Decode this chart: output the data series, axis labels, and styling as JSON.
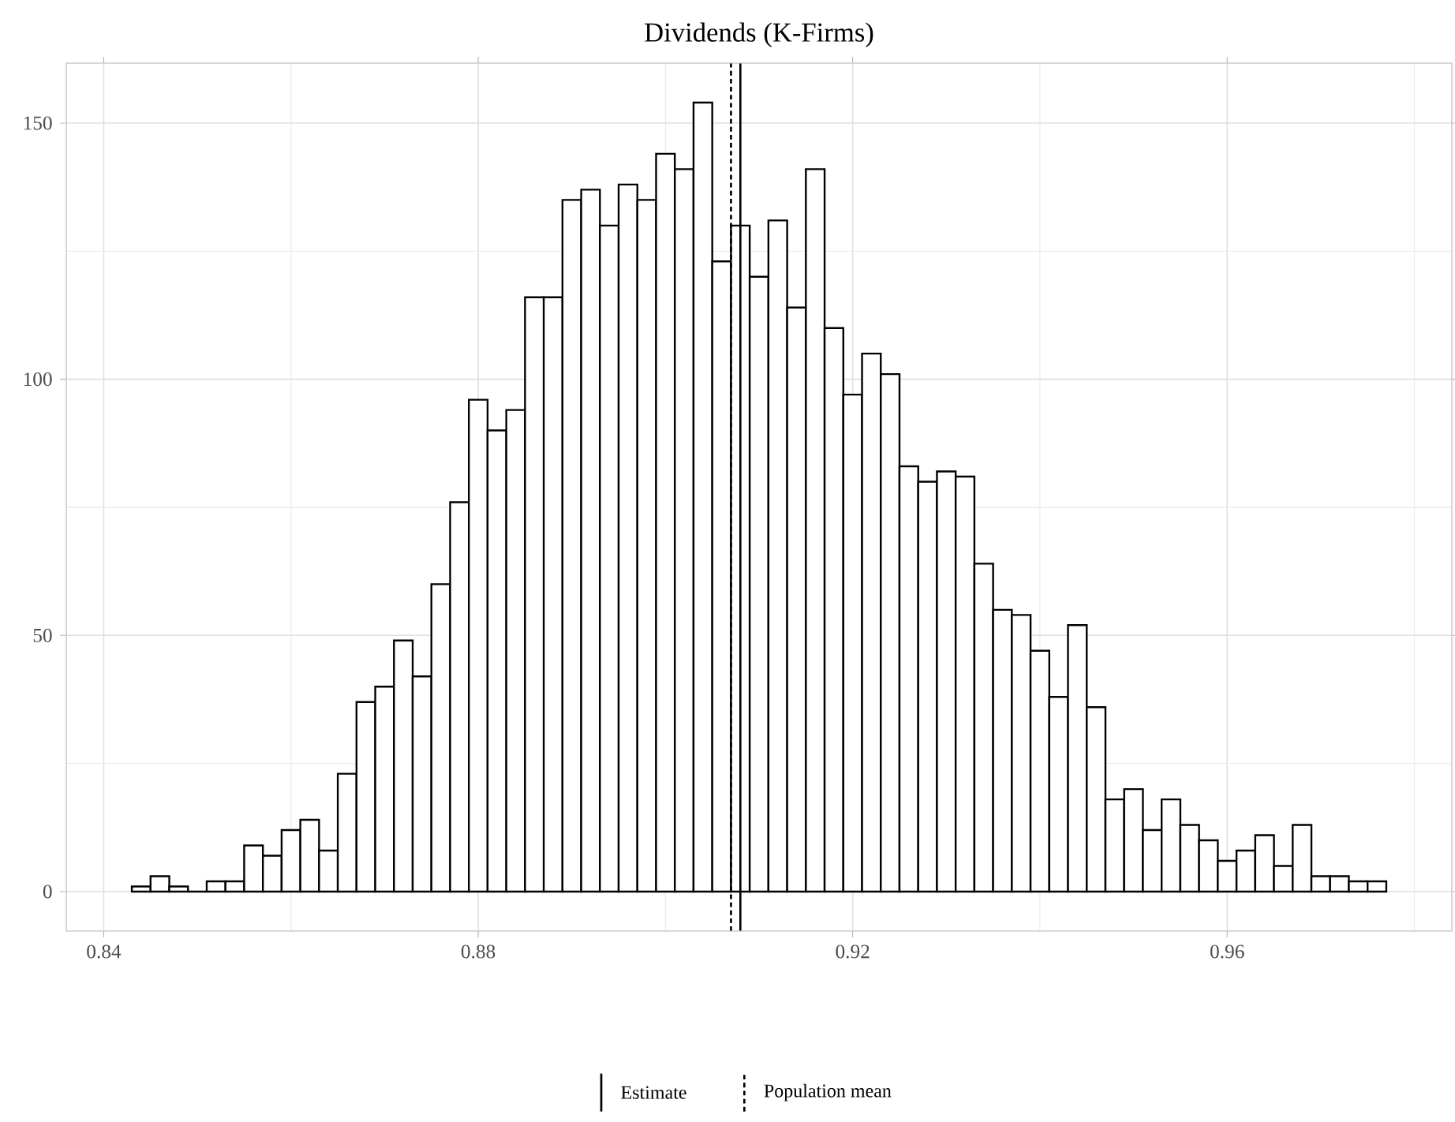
{
  "chart_data": {
    "type": "histogram",
    "title": "Dividends (K-Firms)",
    "bins": [
      0.843,
      0.845,
      0.847,
      0.849,
      0.851,
      0.853,
      0.855,
      0.857,
      0.859,
      0.861,
      0.863,
      0.865,
      0.867,
      0.869,
      0.871,
      0.873,
      0.875,
      0.877,
      0.879,
      0.881,
      0.883,
      0.885,
      0.887,
      0.889,
      0.891,
      0.893,
      0.895,
      0.897,
      0.899,
      0.901,
      0.903,
      0.905,
      0.907,
      0.909,
      0.911,
      0.913,
      0.915,
      0.917,
      0.919,
      0.921,
      0.923,
      0.925,
      0.927,
      0.929,
      0.931,
      0.933,
      0.935,
      0.937,
      0.939,
      0.941,
      0.943,
      0.945,
      0.947,
      0.949,
      0.951,
      0.953,
      0.955,
      0.957,
      0.959,
      0.961,
      0.963,
      0.965,
      0.967,
      0.969,
      0.971,
      0.973,
      0.975,
      0.977
    ],
    "values": [
      1,
      3,
      1,
      0,
      2,
      2,
      9,
      7,
      12,
      14,
      8,
      23,
      37,
      40,
      49,
      42,
      60,
      76,
      96,
      90,
      94,
      116,
      116,
      135,
      137,
      130,
      138,
      135,
      144,
      141,
      154,
      123,
      130,
      120,
      131,
      114,
      141,
      110,
      97,
      105,
      101,
      83,
      80,
      82,
      81,
      64,
      55,
      54,
      47,
      38,
      52,
      36,
      18,
      20,
      12,
      18,
      13,
      10,
      6,
      8,
      11,
      5,
      13,
      3,
      3,
      2,
      2
    ],
    "color": "#000000",
    "xlim": [
      0.836,
      0.984
    ],
    "ylim": [
      -7.7,
      161.7
    ],
    "xticks": [
      0.84,
      0.88,
      0.92,
      0.96
    ],
    "yticks": [
      0,
      50,
      100,
      150
    ],
    "grid": true,
    "legend": "bottom",
    "ref_lines": [
      {
        "axis": "x",
        "value": 0.908,
        "label": "Estimate",
        "line_style": "solid",
        "color": "#000000"
      },
      {
        "axis": "x",
        "value": 0.907,
        "label": "Population mean",
        "line_style": "dashed",
        "color": "#000000"
      }
    ]
  }
}
